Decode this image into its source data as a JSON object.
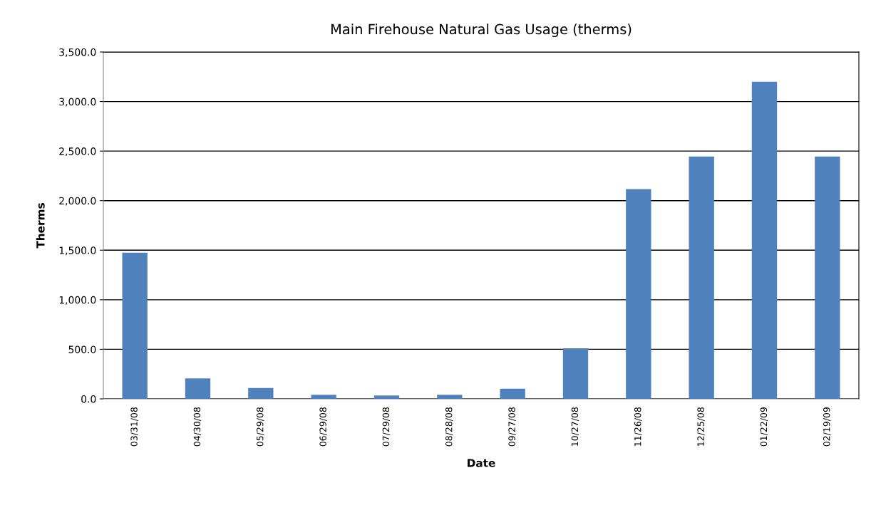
{
  "chart_data": {
    "type": "bar",
    "title": "Main Firehouse Natural Gas Usage (therms)",
    "xlabel": "Date",
    "ylabel": "Therms",
    "categories": [
      "03/31/08",
      "04/30/08",
      "05/29/08",
      "06/29/08",
      "07/29/08",
      "08/28/08",
      "09/27/08",
      "10/27/08",
      "11/26/08",
      "12/25/08",
      "01/22/09",
      "02/19/09"
    ],
    "values": [
      1475,
      206,
      110,
      42,
      34,
      42,
      102,
      510,
      2117,
      2445,
      3200,
      2445
    ],
    "color": "#4f81bd",
    "ylim": [
      0,
      3500
    ],
    "yticks": [
      {
        "value": 0,
        "label": "0.0"
      },
      {
        "value": 500,
        "label": "500.0"
      },
      {
        "value": 1000,
        "label": "1,000.0"
      },
      {
        "value": 1500,
        "label": "1,500.0"
      },
      {
        "value": 2000,
        "label": "2,000.0"
      },
      {
        "value": 2500,
        "label": "2,500.0"
      },
      {
        "value": 3000,
        "label": "3,000.0"
      },
      {
        "value": 3500,
        "label": "3,500.0"
      }
    ],
    "grid": "y",
    "legend": false
  }
}
